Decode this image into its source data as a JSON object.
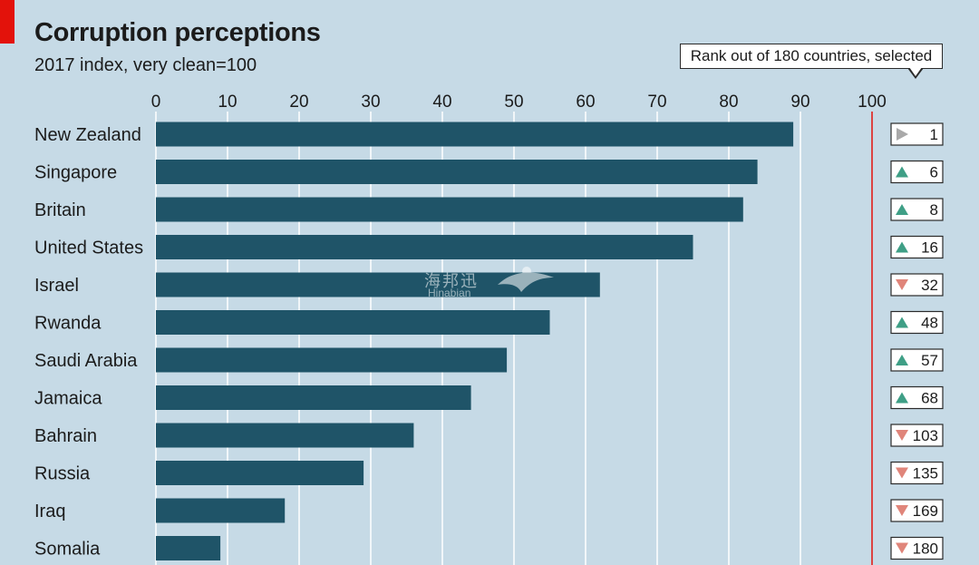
{
  "chart_data": {
    "type": "bar",
    "orientation": "horizontal",
    "title": "Corruption perceptions",
    "subtitle": "2017 index, very clean=100",
    "xlim": [
      0,
      100
    ],
    "ticks": [
      0,
      10,
      20,
      30,
      40,
      50,
      60,
      70,
      80,
      90,
      100
    ],
    "grid": true,
    "categories": [
      "New Zealand",
      "Singapore",
      "Britain",
      "United States",
      "Israel",
      "Rwanda",
      "Saudi Arabia",
      "Jamaica",
      "Bahrain",
      "Russia",
      "Iraq",
      "Somalia"
    ],
    "values": [
      89,
      84,
      82,
      75,
      62,
      55,
      49,
      44,
      36,
      29,
      18,
      9
    ],
    "rank_header": "Rank out of 180 countries, selected",
    "ranks": [
      "1",
      "6",
      "8",
      "16",
      "32",
      "48",
      "57",
      "68",
      "103",
      "135",
      "169",
      "180"
    ],
    "rank_direction": [
      "same",
      "up",
      "up",
      "up",
      "down",
      "up",
      "up",
      "up",
      "down",
      "down",
      "down",
      "down"
    ],
    "colors": {
      "background": "#c6dae6",
      "bar": "#1f5468",
      "grid": "#ffffff",
      "reference_line": "#e3120b",
      "up_arrow": "#3f9f86",
      "down_arrow": "#e0857a",
      "same_arrow": "#a9a9a9"
    }
  },
  "watermark": {
    "text_cn": "海邦迅",
    "text_en": "Hinabian"
  }
}
